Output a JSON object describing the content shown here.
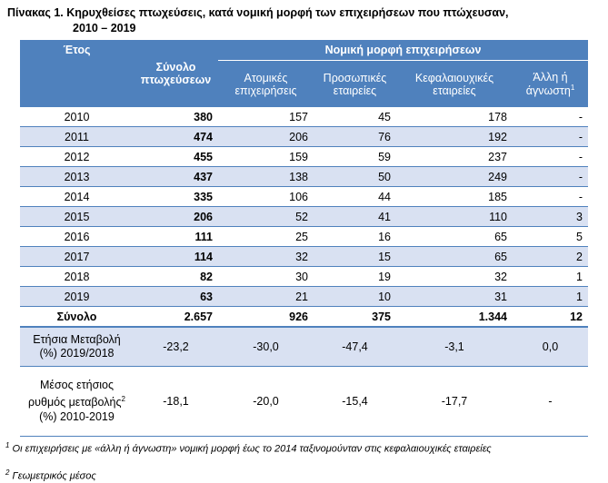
{
  "title": {
    "line1": "Πίνακας 1. Κηρυχθείσες πτωχεύσεις, κατά νομική μορφή των επιχειρήσεων που πτώχευσαν,",
    "line2": "2010 – 2019"
  },
  "header": {
    "year": "Έτος",
    "total": "Σύνολο πτωχεύσεων",
    "group": "Νομική μορφή επιχειρήσεων",
    "col_individual": "Ατομικές επιχειρήσεις",
    "col_personal": "Προσωπικές εταιρείες",
    "col_capital": "Κεφαλαιουχικές εταιρείες",
    "col_other": "Άλλη ή άγνωστη",
    "col_other_sup": "1"
  },
  "rows": [
    {
      "year": "2010",
      "total": "380",
      "individual": "157",
      "personal": "45",
      "capital": "178",
      "other": "-"
    },
    {
      "year": "2011",
      "total": "474",
      "individual": "206",
      "personal": "76",
      "capital": "192",
      "other": "-"
    },
    {
      "year": "2012",
      "total": "455",
      "individual": "159",
      "personal": "59",
      "capital": "237",
      "other": "-"
    },
    {
      "year": "2013",
      "total": "437",
      "individual": "138",
      "personal": "50",
      "capital": "249",
      "other": "-"
    },
    {
      "year": "2014",
      "total": "335",
      "individual": "106",
      "personal": "44",
      "capital": "185",
      "other": "-"
    },
    {
      "year": "2015",
      "total": "206",
      "individual": "52",
      "personal": "41",
      "capital": "110",
      "other": "3"
    },
    {
      "year": "2016",
      "total": "111",
      "individual": "25",
      "personal": "16",
      "capital": "65",
      "other": "5"
    },
    {
      "year": "2017",
      "total": "114",
      "individual": "32",
      "personal": "15",
      "capital": "65",
      "other": "2"
    },
    {
      "year": "2018",
      "total": "82",
      "individual": "30",
      "personal": "19",
      "capital": "32",
      "other": "1"
    },
    {
      "year": "2019",
      "total": "63",
      "individual": "21",
      "personal": "10",
      "capital": "31",
      "other": "1"
    }
  ],
  "sum": {
    "label": "Σύνολο",
    "total": "2.657",
    "individual": "926",
    "personal": "375",
    "capital": "1.344",
    "other": "12"
  },
  "annual_change": {
    "label": "Ετήσια Μεταβολή (%) 2019/2018",
    "total": "-23,2",
    "individual": "-30,0",
    "personal": "-47,4",
    "capital": "-3,1",
    "other": "0,0"
  },
  "avg_rate": {
    "label_a": "Μέσος ετήσιος ρυθμός μεταβολής",
    "label_sup": "2",
    "label_b": " (%) 2010-2019",
    "total": "-18,1",
    "individual": "-20,0",
    "personal": "-15,4",
    "capital": "-17,7",
    "other": "-"
  },
  "footnotes": {
    "n1_sup": "1",
    "n1": " Οι επιχειρήσεις με «άλλη ή άγνωστη» νομική μορφή έως το 2014 ταξινομούνταν στις κεφαλαιουχικές εταιρείες",
    "n2_sup": "2",
    "n2": " Γεωμετρικός μέσος"
  }
}
